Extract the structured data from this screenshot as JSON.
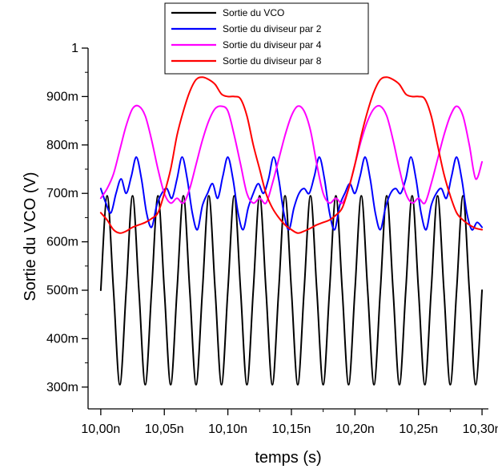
{
  "chart_data": {
    "type": "line",
    "title": "",
    "xlabel": "temps (s)",
    "ylabel": "Sortie du VCO (V)",
    "xlim": [
      9.99,
      10.305
    ],
    "ylim": [
      0.255,
      1.0
    ],
    "x_ticks": [
      {
        "value": 10.0,
        "label": "10,00n"
      },
      {
        "value": 10.05,
        "label": "10,05n"
      },
      {
        "value": 10.1,
        "label": "10,10n"
      },
      {
        "value": 10.15,
        "label": "10,15n"
      },
      {
        "value": 10.2,
        "label": "10,20n"
      },
      {
        "value": 10.25,
        "label": "10,25n"
      },
      {
        "value": 10.3,
        "label": "10,30n"
      }
    ],
    "y_ticks": [
      {
        "value": 0.3,
        "label": "300m"
      },
      {
        "value": 0.4,
        "label": "400m"
      },
      {
        "value": 0.5,
        "label": "500m"
      },
      {
        "value": 0.6,
        "label": "600m"
      },
      {
        "value": 0.7,
        "label": "700m"
      },
      {
        "value": 0.8,
        "label": "800m"
      },
      {
        "value": 0.9,
        "label": "900m"
      },
      {
        "value": 1.0,
        "label": "1"
      }
    ],
    "grid": false,
    "legend_position": "top",
    "series": [
      {
        "name": "Sortie du VCO",
        "color": "#000000",
        "x": [
          10.0,
          10.005,
          10.01,
          10.015,
          10.02,
          10.025,
          10.03,
          10.035,
          10.04,
          10.045,
          10.05,
          10.055,
          10.06,
          10.065,
          10.07,
          10.075,
          10.08,
          10.085,
          10.09,
          10.095,
          10.1,
          10.105,
          10.11,
          10.115,
          10.12,
          10.125,
          10.13,
          10.135,
          10.14,
          10.145,
          10.15,
          10.155,
          10.16,
          10.165,
          10.17,
          10.175,
          10.18,
          10.185,
          10.19,
          10.195,
          10.2,
          10.205,
          10.21,
          10.215,
          10.22,
          10.225,
          10.23,
          10.235,
          10.24,
          10.245,
          10.25,
          10.255,
          10.26,
          10.265,
          10.27,
          10.275,
          10.28,
          10.285,
          10.29,
          10.295,
          10.3
        ],
        "y": [
          0.5,
          0.695,
          0.5,
          0.305,
          0.5,
          0.695,
          0.5,
          0.305,
          0.5,
          0.695,
          0.5,
          0.305,
          0.5,
          0.695,
          0.5,
          0.305,
          0.5,
          0.695,
          0.5,
          0.305,
          0.5,
          0.695,
          0.5,
          0.305,
          0.5,
          0.695,
          0.5,
          0.305,
          0.5,
          0.695,
          0.5,
          0.305,
          0.5,
          0.695,
          0.5,
          0.305,
          0.5,
          0.695,
          0.5,
          0.305,
          0.5,
          0.695,
          0.5,
          0.305,
          0.5,
          0.695,
          0.5,
          0.305,
          0.5,
          0.695,
          0.5,
          0.305,
          0.5,
          0.695,
          0.5,
          0.305,
          0.5,
          0.695,
          0.5,
          0.305,
          0.5
        ]
      },
      {
        "name": "Sortie du diviseur par 2",
        "color": "#0000ff",
        "x": [
          10.0,
          10.004,
          10.008,
          10.012,
          10.016,
          10.02,
          10.024,
          10.028,
          10.032,
          10.036,
          10.04,
          10.044,
          10.048,
          10.052,
          10.056,
          10.06,
          10.064,
          10.068,
          10.072,
          10.076,
          10.08,
          10.084,
          10.088,
          10.092,
          10.096,
          10.1,
          10.104,
          10.108,
          10.112,
          10.116,
          10.12,
          10.124,
          10.128,
          10.132,
          10.136,
          10.14,
          10.144,
          10.148,
          10.152,
          10.156,
          10.16,
          10.164,
          10.168,
          10.172,
          10.176,
          10.18,
          10.184,
          10.188,
          10.192,
          10.196,
          10.2,
          10.204,
          10.208,
          10.212,
          10.216,
          10.22,
          10.224,
          10.228,
          10.232,
          10.236,
          10.24,
          10.244,
          10.248,
          10.252,
          10.256,
          10.26,
          10.264,
          10.268,
          10.272,
          10.276,
          10.28,
          10.284,
          10.288,
          10.292,
          10.296,
          10.3
        ],
        "y": [
          0.71,
          0.68,
          0.66,
          0.7,
          0.73,
          0.7,
          0.735,
          0.775,
          0.73,
          0.66,
          0.63,
          0.675,
          0.7,
          0.71,
          0.69,
          0.73,
          0.775,
          0.73,
          0.66,
          0.625,
          0.675,
          0.7,
          0.72,
          0.69,
          0.735,
          0.775,
          0.73,
          0.66,
          0.625,
          0.67,
          0.7,
          0.72,
          0.7,
          0.73,
          0.775,
          0.73,
          0.66,
          0.625,
          0.67,
          0.7,
          0.71,
          0.7,
          0.735,
          0.775,
          0.73,
          0.66,
          0.625,
          0.675,
          0.7,
          0.72,
          0.7,
          0.735,
          0.775,
          0.73,
          0.66,
          0.625,
          0.67,
          0.7,
          0.71,
          0.7,
          0.73,
          0.775,
          0.73,
          0.66,
          0.625,
          0.675,
          0.7,
          0.71,
          0.69,
          0.735,
          0.775,
          0.73,
          0.66,
          0.625,
          0.64,
          0.63
        ]
      },
      {
        "name": "Sortie du diviseur par 4",
        "color": "#ff00ff",
        "x": [
          10.0,
          10.005,
          10.01,
          10.015,
          10.02,
          10.025,
          10.03,
          10.035,
          10.04,
          10.045,
          10.05,
          10.055,
          10.06,
          10.065,
          10.07,
          10.075,
          10.08,
          10.085,
          10.09,
          10.095,
          10.1,
          10.105,
          10.11,
          10.115,
          10.12,
          10.125,
          10.13,
          10.135,
          10.14,
          10.145,
          10.15,
          10.155,
          10.16,
          10.165,
          10.17,
          10.175,
          10.18,
          10.185,
          10.19,
          10.195,
          10.2,
          10.205,
          10.21,
          10.215,
          10.22,
          10.225,
          10.23,
          10.235,
          10.24,
          10.245,
          10.25,
          10.255,
          10.26,
          10.265,
          10.27,
          10.275,
          10.28,
          10.285,
          10.29,
          10.295,
          10.3
        ],
        "y": [
          0.69,
          0.71,
          0.74,
          0.79,
          0.84,
          0.875,
          0.88,
          0.86,
          0.81,
          0.75,
          0.7,
          0.68,
          0.69,
          0.68,
          0.71,
          0.76,
          0.81,
          0.85,
          0.875,
          0.88,
          0.87,
          0.82,
          0.76,
          0.7,
          0.68,
          0.69,
          0.68,
          0.72,
          0.77,
          0.82,
          0.86,
          0.88,
          0.87,
          0.83,
          0.76,
          0.7,
          0.68,
          0.69,
          0.68,
          0.71,
          0.76,
          0.81,
          0.85,
          0.875,
          0.88,
          0.86,
          0.81,
          0.75,
          0.7,
          0.68,
          0.69,
          0.68,
          0.72,
          0.77,
          0.82,
          0.86,
          0.88,
          0.86,
          0.8,
          0.73,
          0.765
        ]
      },
      {
        "name": "Sortie du diviseur par 8",
        "color": "#ff0000",
        "x": [
          10.0,
          10.005,
          10.01,
          10.015,
          10.02,
          10.025,
          10.03,
          10.035,
          10.04,
          10.045,
          10.05,
          10.055,
          10.06,
          10.065,
          10.07,
          10.075,
          10.08,
          10.085,
          10.09,
          10.095,
          10.1,
          10.105,
          10.11,
          10.115,
          10.12,
          10.125,
          10.13,
          10.135,
          10.14,
          10.145,
          10.15,
          10.155,
          10.16,
          10.165,
          10.17,
          10.175,
          10.18,
          10.185,
          10.19,
          10.195,
          10.2,
          10.205,
          10.21,
          10.215,
          10.22,
          10.225,
          10.23,
          10.235,
          10.24,
          10.245,
          10.25,
          10.255,
          10.26,
          10.265,
          10.27,
          10.275,
          10.28,
          10.285,
          10.29,
          10.295,
          10.3
        ],
        "y": [
          0.66,
          0.645,
          0.625,
          0.618,
          0.622,
          0.63,
          0.635,
          0.64,
          0.648,
          0.66,
          0.7,
          0.75,
          0.82,
          0.87,
          0.91,
          0.935,
          0.94,
          0.935,
          0.925,
          0.905,
          0.9,
          0.9,
          0.895,
          0.86,
          0.8,
          0.75,
          0.7,
          0.67,
          0.65,
          0.635,
          0.625,
          0.618,
          0.622,
          0.628,
          0.635,
          0.64,
          0.645,
          0.655,
          0.67,
          0.71,
          0.76,
          0.82,
          0.87,
          0.91,
          0.935,
          0.94,
          0.935,
          0.925,
          0.905,
          0.9,
          0.9,
          0.895,
          0.86,
          0.8,
          0.74,
          0.695,
          0.66,
          0.645,
          0.635,
          0.628,
          0.625
        ]
      }
    ]
  }
}
